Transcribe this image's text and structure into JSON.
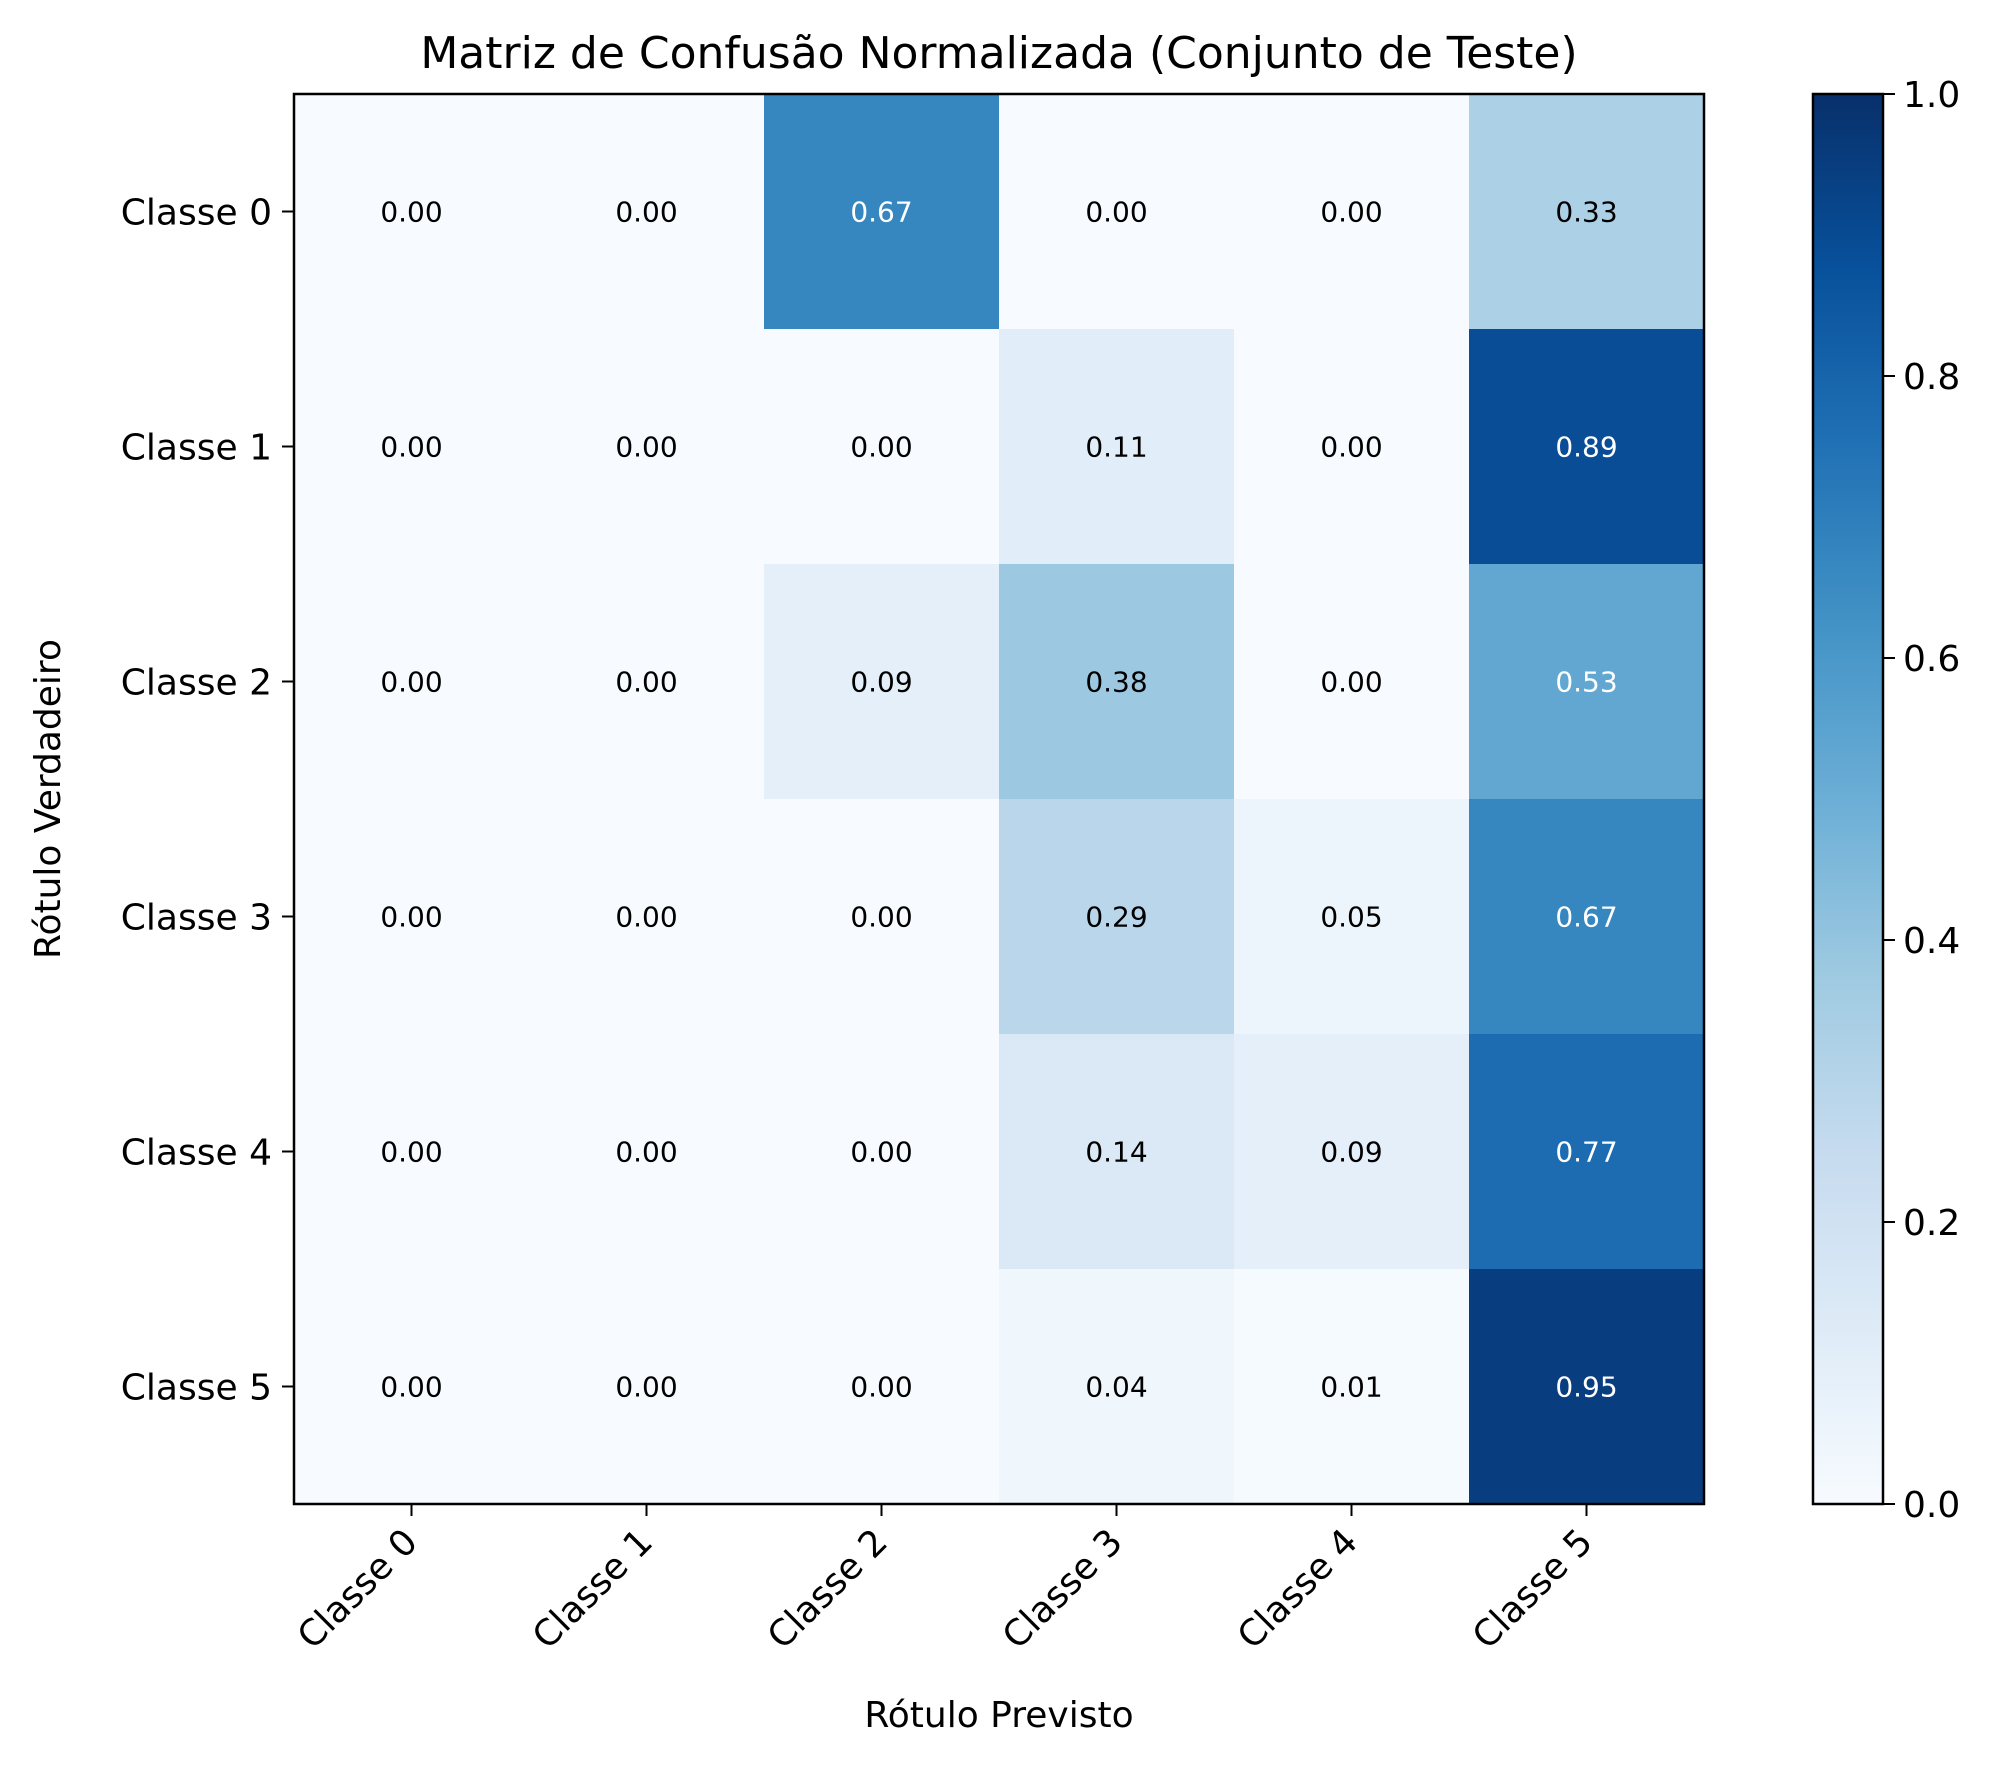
{
  "chart_data": {
    "type": "heatmap",
    "title": "Matriz de Confusão Normalizada (Conjunto de Teste)",
    "xlabel": "Rótulo Previsto",
    "ylabel": "Rótulo Verdadeiro",
    "x_categories": [
      "Classe 0",
      "Classe 1",
      "Classe 2",
      "Classe 3",
      "Classe 4",
      "Classe 5"
    ],
    "y_categories": [
      "Classe 0",
      "Classe 1",
      "Classe 2",
      "Classe 3",
      "Classe 4",
      "Classe 5"
    ],
    "values": [
      [
        0.0,
        0.0,
        0.67,
        0.0,
        0.0,
        0.33
      ],
      [
        0.0,
        0.0,
        0.0,
        0.11,
        0.0,
        0.89
      ],
      [
        0.0,
        0.0,
        0.09,
        0.38,
        0.0,
        0.53
      ],
      [
        0.0,
        0.0,
        0.0,
        0.29,
        0.05,
        0.67
      ],
      [
        0.0,
        0.0,
        0.0,
        0.14,
        0.09,
        0.77
      ],
      [
        0.0,
        0.0,
        0.0,
        0.04,
        0.01,
        0.95
      ]
    ],
    "value_format": "0.00",
    "colormap": "Blues",
    "vmin": 0.0,
    "vmax": 1.0,
    "colorbar_ticks": [
      "0.0",
      "0.2",
      "0.4",
      "0.6",
      "0.8",
      "1.0"
    ],
    "grid": false
  }
}
